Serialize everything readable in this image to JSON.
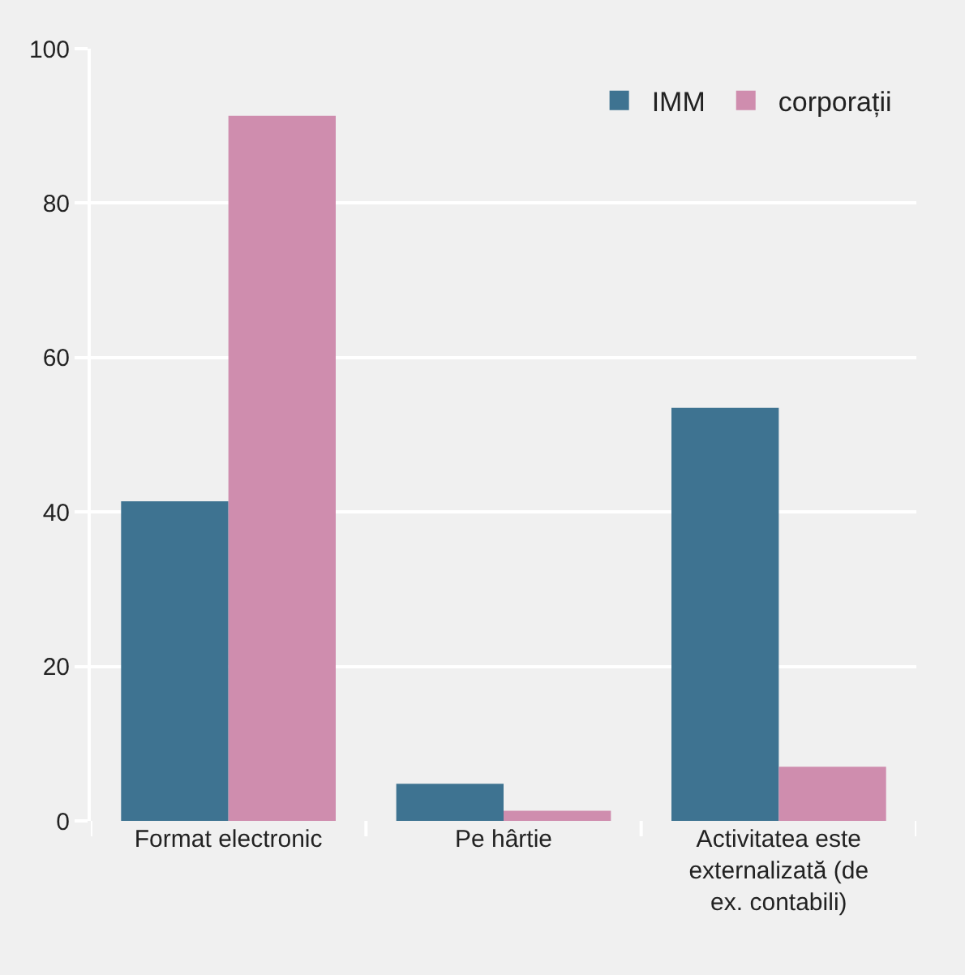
{
  "chart_data": {
    "type": "bar",
    "categories": [
      "Format electronic",
      "Pe hârtie",
      "Activitatea este externalizată (de ex. contabili)"
    ],
    "series": [
      {
        "name": "IMM",
        "color": "#3e7391",
        "values": [
          41.4,
          4.8,
          53.5
        ]
      },
      {
        "name": "corporații",
        "color": "#cf8dae",
        "values": [
          91.3,
          1.3,
          7.0
        ]
      }
    ],
    "ylim": [
      0,
      100
    ],
    "yticks": [
      0,
      20,
      40,
      60,
      80,
      100
    ],
    "grid": "y",
    "legend": "top right"
  }
}
